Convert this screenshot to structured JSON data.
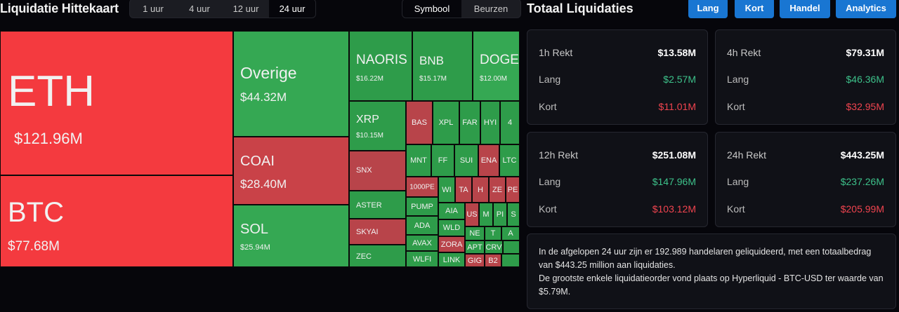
{
  "heatmap": {
    "title": "Liquidatie Hittekaart",
    "time_tabs": [
      "1 uur",
      "4 uur",
      "12 uur",
      "24 uur"
    ],
    "view_tabs": [
      "Symbool",
      "Beurzen"
    ],
    "tiles": [
      {
        "sym": "ETH",
        "val": "$121.96M"
      },
      {
        "sym": "BTC",
        "val": "$77.68M"
      },
      {
        "sym": "Overige",
        "val": "$44.32M"
      },
      {
        "sym": "COAI",
        "val": "$28.40M"
      },
      {
        "sym": "SOL",
        "val": "$25.94M"
      },
      {
        "sym": "NAORIS",
        "val": "$16.22M"
      },
      {
        "sym": "BNB",
        "val": "$15.17M"
      },
      {
        "sym": "DOGE",
        "val": "$12.00M"
      },
      {
        "sym": "XRP",
        "val": "$10.15M"
      },
      {
        "sym": "SNX"
      },
      {
        "sym": "ASTER"
      },
      {
        "sym": "SKYAI"
      },
      {
        "sym": "ZEC"
      },
      {
        "sym": "BAS"
      },
      {
        "sym": "XPL"
      },
      {
        "sym": "FAR"
      },
      {
        "sym": "HYI"
      },
      {
        "sym": "4"
      },
      {
        "sym": "MNT"
      },
      {
        "sym": "FF"
      },
      {
        "sym": "SUI"
      },
      {
        "sym": "ENA"
      },
      {
        "sym": "LTC"
      },
      {
        "sym": "1000PE"
      },
      {
        "sym": "WI"
      },
      {
        "sym": "TA"
      },
      {
        "sym": "H"
      },
      {
        "sym": "ZE"
      },
      {
        "sym": "PE"
      },
      {
        "sym": "PUMP"
      },
      {
        "sym": "AIA"
      },
      {
        "sym": "US"
      },
      {
        "sym": "M"
      },
      {
        "sym": "PI"
      },
      {
        "sym": "S"
      },
      {
        "sym": "ADA"
      },
      {
        "sym": "WLD"
      },
      {
        "sym": "NE"
      },
      {
        "sym": "T"
      },
      {
        "sym": "A"
      },
      {
        "sym": "AVAX"
      },
      {
        "sym": "ZORA"
      },
      {
        "sym": "APT"
      },
      {
        "sym": "CRV"
      },
      {
        "sym": "WLFI"
      },
      {
        "sym": "LINK"
      },
      {
        "sym": "GIG"
      },
      {
        "sym": "B2"
      }
    ]
  },
  "totals": {
    "title": "Totaal Liquidaties",
    "buttons": [
      "Lang",
      "Kort",
      "Handel",
      "Analytics"
    ],
    "cards": [
      {
        "label": "1h Rekt",
        "total": "$13.58M",
        "long_label": "Lang",
        "long": "$2.57M",
        "short_label": "Kort",
        "short": "$11.01M"
      },
      {
        "label": "4h Rekt",
        "total": "$79.31M",
        "long_label": "Lang",
        "long": "$46.36M",
        "short_label": "Kort",
        "short": "$32.95M"
      },
      {
        "label": "12h Rekt",
        "total": "$251.08M",
        "long_label": "Lang",
        "long": "$147.96M",
        "short_label": "Kort",
        "short": "$103.12M"
      },
      {
        "label": "24h Rekt",
        "total": "$443.25M",
        "long_label": "Lang",
        "long": "$237.26M",
        "short_label": "Kort",
        "short": "$205.99M"
      }
    ],
    "summary_line1": "In de afgelopen 24 uur zijn er 192.989 handelaren geliquideerd, met een totaalbedrag van $443.25 million aan liquidaties.",
    "summary_line2": "De grootste enkele liquidatieorder vond plaats op Hyperliquid - BTC-USD ter waarde van $5.79M."
  },
  "colors": {
    "long": "#3dc18a",
    "short": "#f0444f",
    "accent": "#1976d2",
    "tile_red": "#f43a3f",
    "tile_green": "#35a853"
  }
}
